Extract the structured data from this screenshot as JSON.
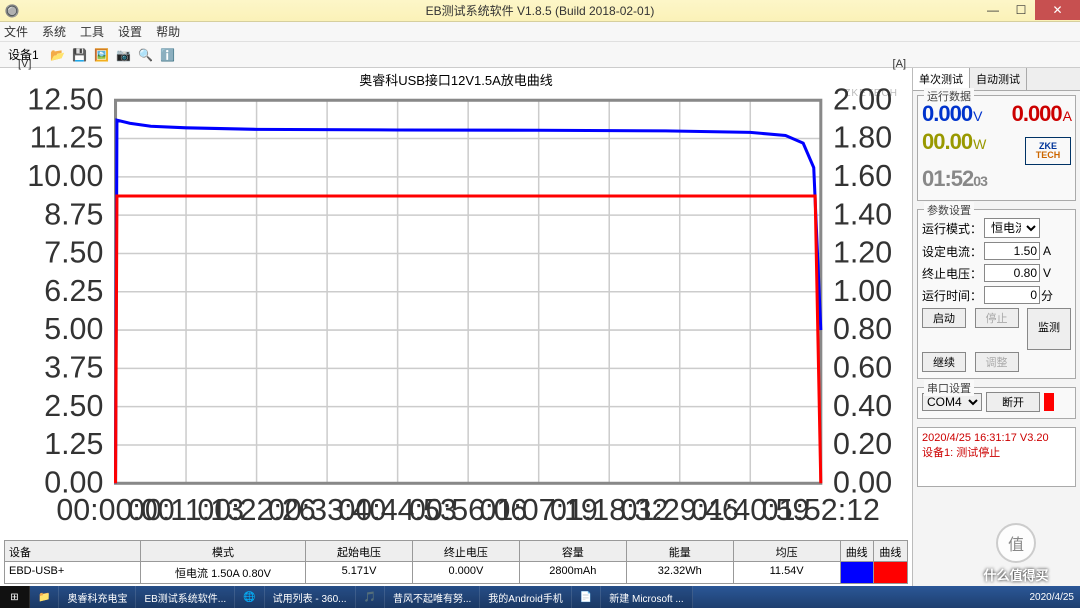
{
  "window": {
    "title": "EB测试系统软件 V1.8.5 (Build 2018-02-01)"
  },
  "menu": {
    "items": [
      "文件",
      "系统",
      "工具",
      "设置",
      "帮助"
    ]
  },
  "toolbar": {
    "tab": "设备1"
  },
  "chart": {
    "title": "奥睿科USB接口12V1.5A放电曲线",
    "left_axis_label": "[V]",
    "right_axis_label": "[A]",
    "watermark": "ZKETECH",
    "left_axis": {
      "min": 0.0,
      "max": 12.5,
      "step": 1.25,
      "color": "#333333"
    },
    "right_axis": {
      "min": 0.0,
      "max": 2.0,
      "step": 0.2,
      "color": "#333333"
    },
    "x_ticks": [
      "00:00:00",
      "00:11:13",
      "00:22:26",
      "00:33:40",
      "00:44:53",
      "00:56:06",
      "01:07:19",
      "01:18:32",
      "01:29:46",
      "01:40:59",
      "01:52:12"
    ],
    "grid_color": "#cccccc",
    "background_color": "#ffffff",
    "series": [
      {
        "name": "voltage",
        "axis": "left",
        "color": "#0000ff",
        "width": 1,
        "points": [
          [
            0,
            0
          ],
          [
            0.002,
            11.85
          ],
          [
            0.02,
            11.75
          ],
          [
            0.05,
            11.65
          ],
          [
            0.1,
            11.6
          ],
          [
            0.2,
            11.55
          ],
          [
            0.4,
            11.53
          ],
          [
            0.6,
            11.52
          ],
          [
            0.78,
            11.5
          ],
          [
            0.9,
            11.45
          ],
          [
            0.95,
            11.35
          ],
          [
            0.975,
            11.1
          ],
          [
            0.99,
            10.3
          ],
          [
            1.0,
            5.0
          ]
        ]
      },
      {
        "name": "current",
        "axis": "right",
        "color": "#ff0000",
        "width": 1,
        "points": [
          [
            0,
            0
          ],
          [
            0.002,
            1.5
          ],
          [
            0.99,
            1.5
          ],
          [
            0.992,
            1.5
          ],
          [
            1.0,
            0
          ]
        ]
      }
    ]
  },
  "table": {
    "headers": [
      "设备",
      "模式",
      "起始电压",
      "终止电压",
      "容量",
      "能量",
      "均压",
      "曲线V",
      "曲线A"
    ],
    "row": {
      "device": "EBD-USB+",
      "mode": "恒电流 1.50A 0.80V",
      "start_v": "5.171V",
      "end_v": "0.000V",
      "capacity": "2800mAh",
      "energy": "32.32Wh",
      "avg_v": "11.54V"
    }
  },
  "side": {
    "tabs": [
      "单次测试",
      "自动测试"
    ],
    "run_group": "运行数据",
    "voltage": {
      "value": "0.000",
      "unit": "V",
      "color": "#0033cc"
    },
    "current": {
      "value": "0.000",
      "unit": "A",
      "color": "#cc0000"
    },
    "power": {
      "value": "00.00",
      "unit": "W",
      "color": "#999900"
    },
    "time": {
      "value": "01:52",
      "sub": "03",
      "color": "#888888"
    },
    "logo": {
      "l1": "ZKE",
      "l2": "TECH"
    },
    "param_group": "参数设置",
    "params": {
      "mode_label": "运行模式：",
      "mode_value": "恒电流",
      "set_i_label": "设定电流：",
      "set_i_value": "1.50",
      "set_i_unit": "A",
      "cut_v_label": "终止电压：",
      "cut_v_value": "0.80",
      "cut_v_unit": "V",
      "run_t_label": "运行时间：",
      "run_t_value": "0",
      "run_t_unit": "分"
    },
    "buttons": {
      "start": "启动",
      "stop": "停止",
      "cont": "继续",
      "adjust": "调整",
      "monitor": "监测"
    },
    "serial_group": "串口设置",
    "serial": {
      "port": "COM4",
      "disconnect": "断开"
    },
    "log": {
      "line1": "2020/4/25 16:31:17  V3.20",
      "line2": "设备1: 测试停止"
    }
  },
  "taskbar": {
    "items": [
      "",
      "",
      "奥睿科充电宝",
      "EB测试系统软件...",
      "",
      "试用列表 - 360...",
      "",
      "昔风不起唯有努...",
      "我的Android手机",
      "",
      "新建 Microsoft ..."
    ],
    "date1": "2020/4/25",
    "date2": "2020/4/25"
  },
  "stamp": {
    "glyph": "值",
    "text": "什么值得买"
  }
}
